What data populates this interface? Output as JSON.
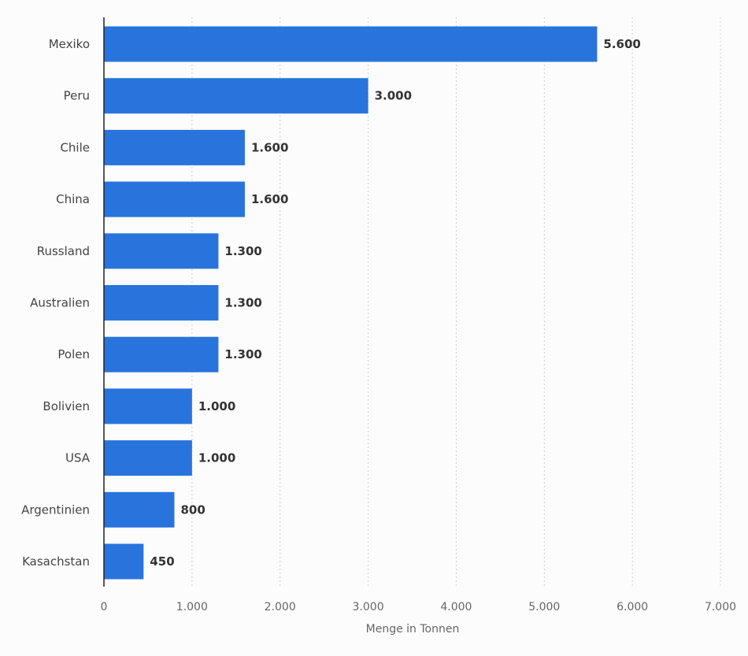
{
  "chart_data": {
    "type": "bar",
    "orientation": "horizontal",
    "categories": [
      "Mexiko",
      "Peru",
      "Chile",
      "China",
      "Russland",
      "Australien",
      "Polen",
      "Bolivien",
      "USA",
      "Argentinien",
      "Kasachstan"
    ],
    "values": [
      5600,
      3000,
      1600,
      1600,
      1300,
      1300,
      1300,
      1000,
      1000,
      800,
      450
    ],
    "value_labels": [
      "5.600",
      "3.000",
      "1.600",
      "1.600",
      "1.300",
      "1.300",
      "1.300",
      "1.000",
      "1.000",
      "800",
      "450"
    ],
    "xlabel": "Menge in Tonnen",
    "xlim": [
      0,
      7000
    ],
    "xticks": [
      0,
      1000,
      2000,
      3000,
      4000,
      5000,
      6000,
      7000
    ],
    "xtick_labels": [
      "0",
      "1.000",
      "2.000",
      "3.000",
      "4.000",
      "5.000",
      "6.000",
      "7.000"
    ],
    "grid": true,
    "bar_color": "#2874dc"
  }
}
